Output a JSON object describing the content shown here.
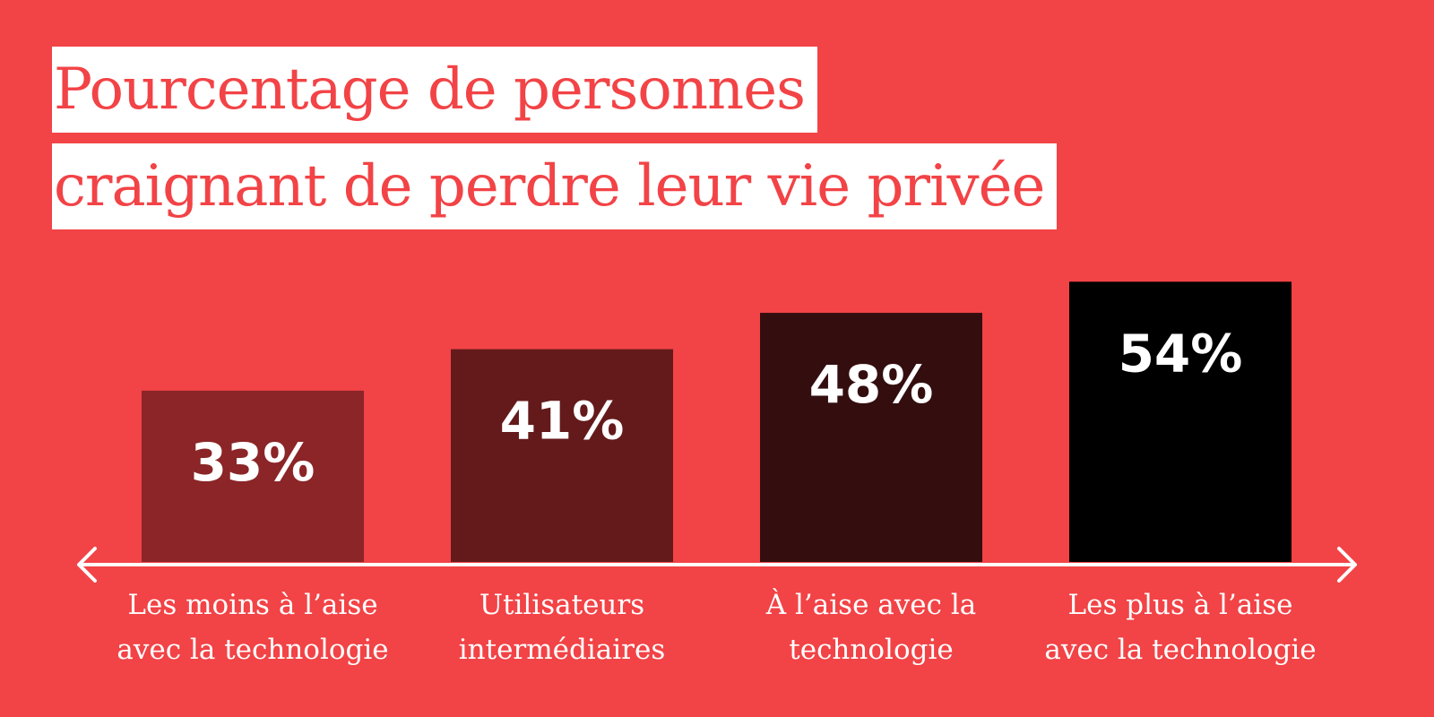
{
  "title": {
    "line1": "Pourcentage de personnes",
    "line2": "craignant de perdre leur vie privée"
  },
  "colors": {
    "background": "#f24346",
    "title_box": "#ffffff",
    "title_text": "#f24346",
    "axis": "#ffffff",
    "value_text": "#ffffff",
    "label_text": "#ffffff"
  },
  "chart_data": {
    "type": "bar",
    "title": "Pourcentage de personnes craignant de perdre leur vie privée",
    "categories": [
      [
        "Les moins à l’aise",
        "avec la technologie"
      ],
      [
        "Utilisateurs",
        "intermédiaires"
      ],
      [
        "À l’aise avec la",
        "technologie"
      ],
      [
        "Les plus à l’aise",
        "avec la technologie"
      ]
    ],
    "values": [
      33,
      41,
      48,
      54
    ],
    "value_labels": [
      "33%",
      "41%",
      "48%",
      "54%"
    ],
    "bar_colors": [
      "#8b2527",
      "#641a1b",
      "#340e0f",
      "#000000"
    ],
    "unit": "%",
    "xlabel": "",
    "ylabel": "",
    "grid": false,
    "legend": "none"
  }
}
